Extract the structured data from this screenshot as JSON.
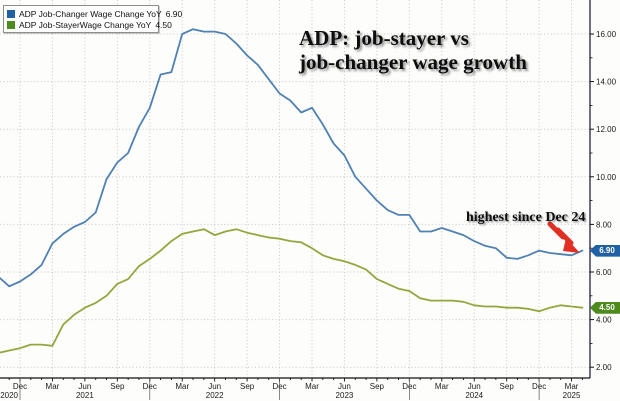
{
  "chart": {
    "title_lines": [
      "ADP: job-stayer vs",
      "job-changer wage growth"
    ],
    "annotation_text": "highest since Dec 24",
    "colors": {
      "background": "#fdfdfc",
      "grid": "#c6c6c6",
      "axis": "#222240",
      "tick_text": "#1a1a1a",
      "arrow_red": "#e03024",
      "changer_line": "#4f81b2",
      "stayer_line": "#93a73d",
      "changer_badge": "#2060a4",
      "stayer_badge": "#4e8b1d"
    }
  },
  "chart_data": {
    "type": "line",
    "title": "ADP: job-stayer vs job-changer wage growth",
    "annotation": "highest since Dec 24",
    "legend_position": "top-left",
    "grid": true,
    "ylim": [
      1.5,
      17.5
    ],
    "yticks": [
      2,
      4,
      6,
      8,
      10,
      12,
      14,
      16
    ],
    "ytick_format": "2dp",
    "x": [
      "Oct 2020",
      "Nov 2020",
      "Dec 2020",
      "Jan 2021",
      "Feb 2021",
      "Mar 2021",
      "Apr 2021",
      "May 2021",
      "Jun 2021",
      "Jul 2021",
      "Aug 2021",
      "Sep 2021",
      "Oct 2021",
      "Nov 2021",
      "Dec 2021",
      "Jan 2022",
      "Feb 2022",
      "Mar 2022",
      "Apr 2022",
      "May 2022",
      "Jun 2022",
      "Jul 2022",
      "Aug 2022",
      "Sep 2022",
      "Oct 2022",
      "Nov 2022",
      "Dec 2022",
      "Jan 2023",
      "Feb 2023",
      "Mar 2023",
      "Apr 2023",
      "May 2023",
      "Jun 2023",
      "Jul 2023",
      "Aug 2023",
      "Sep 2023",
      "Oct 2023",
      "Nov 2023",
      "Dec 2023",
      "Jan 2024",
      "Feb 2024",
      "Mar 2024",
      "Apr 2024",
      "May 2024",
      "Jun 2024",
      "Jul 2024",
      "Aug 2024",
      "Sep 2024",
      "Oct 2024",
      "Nov 2024",
      "Dec 2024",
      "Jan 2025",
      "Feb 2025",
      "Mar 2025",
      "Apr 2025"
    ],
    "xtick_quarter_months": [
      "Dec",
      "Mar",
      "Jun",
      "Sep"
    ],
    "year_labels": [
      {
        "text": "2020",
        "at": "Dec 2020",
        "align": "end"
      },
      {
        "text": "2021",
        "at": "Jun 2021",
        "align": "middle"
      },
      {
        "text": "2022",
        "at": "Jun 2022",
        "align": "middle"
      },
      {
        "text": "2023",
        "at": "Jun 2023",
        "align": "middle"
      },
      {
        "text": "2024",
        "at": "Jun 2024",
        "align": "middle"
      },
      {
        "text": "2025",
        "at": "Mar 2025",
        "align": "middle"
      }
    ],
    "series": [
      {
        "name": "ADP Job-Changer Wage Change YoY",
        "legend_value": "6.90",
        "line_color": "#4f81b2",
        "swatch_color": "#2060a4",
        "badge_color": "#2060a4",
        "values": [
          5.8,
          5.4,
          5.6,
          5.9,
          6.3,
          7.2,
          7.6,
          7.9,
          8.1,
          8.5,
          9.9,
          10.6,
          11.0,
          12.1,
          12.9,
          14.3,
          14.4,
          16.0,
          16.2,
          16.1,
          16.1,
          16.0,
          15.6,
          15.1,
          14.7,
          14.1,
          13.5,
          13.2,
          12.7,
          12.9,
          12.2,
          11.4,
          10.9,
          10.0,
          9.5,
          9.0,
          8.6,
          8.4,
          8.4,
          7.7,
          7.7,
          7.85,
          7.7,
          7.55,
          7.3,
          7.1,
          7.0,
          6.6,
          6.55,
          6.7,
          6.9,
          6.8,
          6.75,
          6.7,
          6.9
        ]
      },
      {
        "name": "ADP Job-StayerWage Change YoY",
        "legend_value": "4.50",
        "line_color": "#93a73d",
        "swatch_color": "#4e8b1d",
        "badge_color": "#4e8b1d",
        "values": [
          2.6,
          2.7,
          2.8,
          2.95,
          2.95,
          2.9,
          3.8,
          4.2,
          4.5,
          4.7,
          5.0,
          5.5,
          5.7,
          6.25,
          6.55,
          6.9,
          7.3,
          7.6,
          7.7,
          7.8,
          7.55,
          7.7,
          7.8,
          7.65,
          7.55,
          7.45,
          7.4,
          7.3,
          7.25,
          7.0,
          6.7,
          6.55,
          6.45,
          6.3,
          6.1,
          5.7,
          5.5,
          5.3,
          5.2,
          4.9,
          4.8,
          4.8,
          4.8,
          4.75,
          4.6,
          4.55,
          4.55,
          4.5,
          4.5,
          4.45,
          4.35,
          4.5,
          4.6,
          4.55,
          4.5
        ]
      }
    ]
  }
}
